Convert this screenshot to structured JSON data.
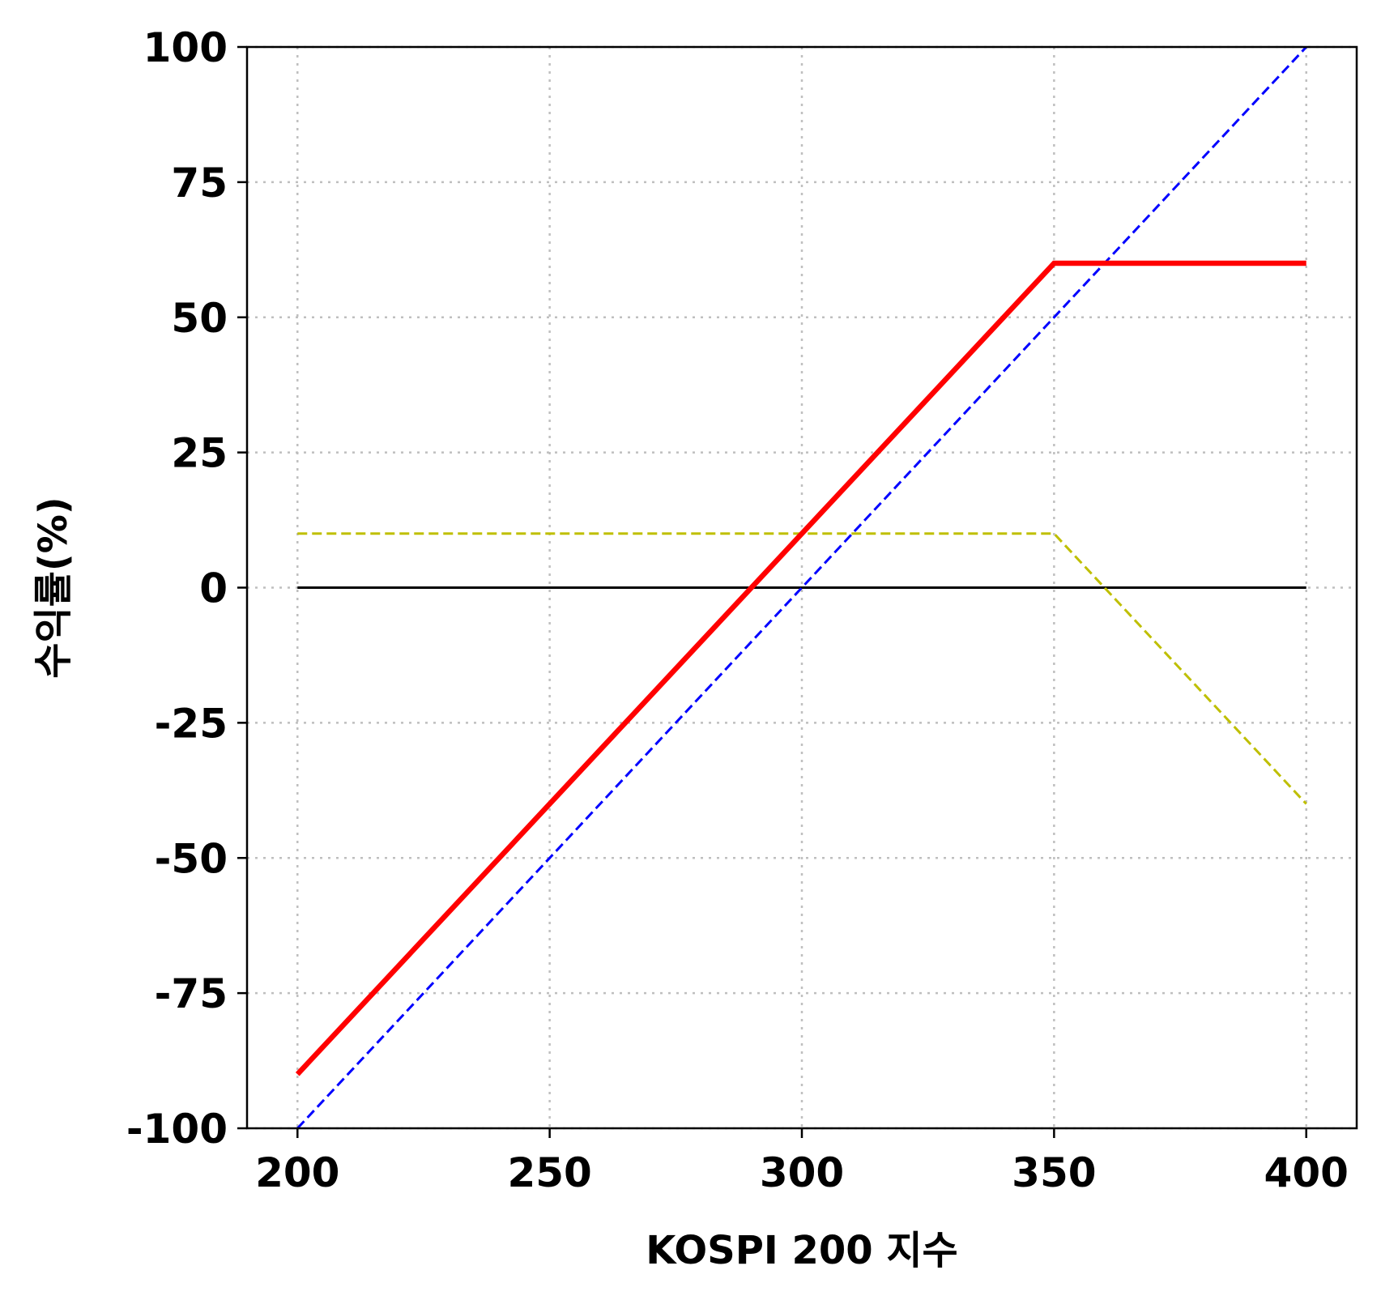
{
  "chart_data": {
    "type": "line",
    "title": "",
    "xlabel": "KOSPI 200 지수",
    "ylabel": "수익률(%)",
    "xlim": [
      190,
      410
    ],
    "ylim": [
      -100,
      100
    ],
    "xticks": [
      200,
      250,
      300,
      350,
      400
    ],
    "yticks": [
      -100,
      -75,
      -50,
      -25,
      0,
      25,
      50,
      75,
      100
    ],
    "xtick_labels": [
      "200",
      "250",
      "300",
      "350",
      "400"
    ],
    "ytick_labels": [
      "-100",
      "-75",
      "-50",
      "-25",
      "0",
      "25",
      "50",
      "75",
      "100"
    ],
    "grid": true,
    "legend": "none",
    "series": [
      {
        "color": "#000000",
        "style": "solid",
        "width": "thin",
        "x": [
          200,
          400
        ],
        "y": [
          0,
          0
        ]
      },
      {
        "color": "#0000ff",
        "style": "dashed",
        "width": "thin",
        "x": [
          200,
          400
        ],
        "y": [
          -100,
          100
        ]
      },
      {
        "color": "#bfbf00",
        "style": "dashed",
        "width": "thin",
        "x": [
          200,
          350,
          400
        ],
        "y": [
          10,
          10,
          -40
        ]
      },
      {
        "color": "#ff0000",
        "style": "solid",
        "width": "thick",
        "x": [
          200,
          350,
          400
        ],
        "y": [
          -90,
          60,
          60
        ]
      }
    ]
  }
}
